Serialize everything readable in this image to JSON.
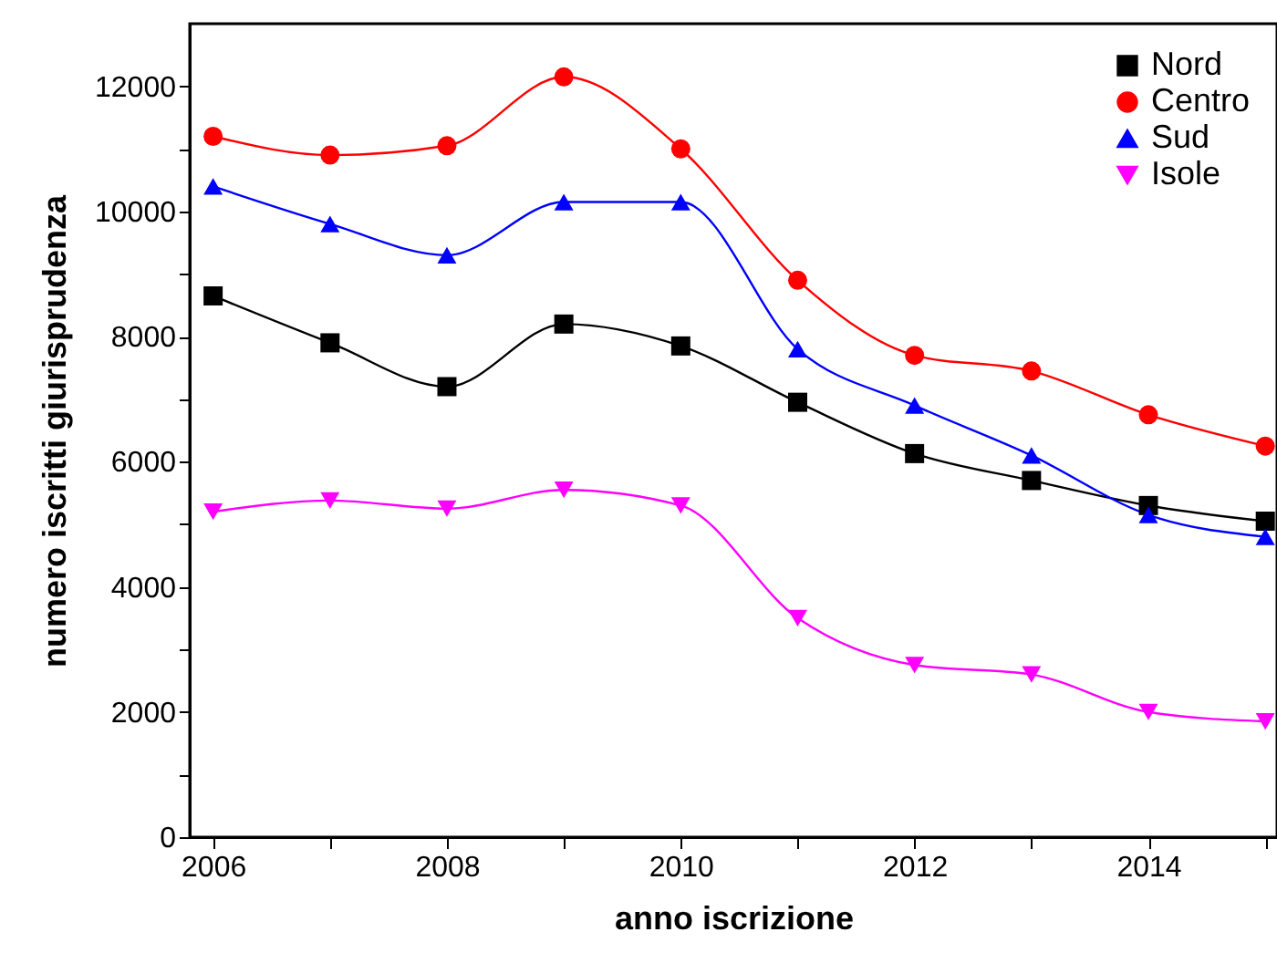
{
  "chart_data": {
    "type": "line",
    "xlabel": "anno iscrizione",
    "ylabel": "numero iscritti giurisprudenza",
    "x": [
      2006,
      2007,
      2008,
      2009,
      2010,
      2011,
      2012,
      2013,
      2014,
      2015
    ],
    "series": [
      {
        "name": "Nord",
        "color": "#000000",
        "marker": "square",
        "values": [
          8650,
          7900,
          7200,
          8200,
          7850,
          6950,
          6130,
          5700,
          5300,
          5050
        ]
      },
      {
        "name": "Centro",
        "color": "#ff0000",
        "marker": "circle",
        "values": [
          11200,
          10900,
          11050,
          12150,
          11000,
          8900,
          7700,
          7450,
          6750,
          6250
        ]
      },
      {
        "name": "Sud",
        "color": "#0000ff",
        "marker": "triangle",
        "values": [
          10400,
          9800,
          9300,
          10150,
          10150,
          7800,
          6900,
          6100,
          5150,
          4800
        ]
      },
      {
        "name": "Isole",
        "color": "#ff00ff",
        "marker": "triangle-down",
        "values": [
          5200,
          5380,
          5250,
          5550,
          5300,
          3500,
          2750,
          2600,
          2000,
          1850
        ]
      }
    ],
    "xlim": [
      2005.8,
      2015.1
    ],
    "xticks": [
      2006,
      {
        "value": 2007,
        "label": null
      },
      2008,
      {
        "value": 2009,
        "label": null
      },
      2010,
      {
        "value": 2011,
        "label": null
      },
      2012,
      {
        "value": 2013,
        "label": null
      },
      2014,
      {
        "value": 2015,
        "label": null
      }
    ],
    "ylim": [
      0,
      13000
    ],
    "yticks": [
      0,
      {
        "value": 1000,
        "label": null
      },
      2000,
      {
        "value": 3000,
        "label": null
      },
      4000,
      {
        "value": 5000,
        "label": null
      },
      6000,
      {
        "value": 7000,
        "label": null
      },
      8000,
      {
        "value": 9000,
        "label": null
      },
      10000,
      {
        "value": 11000,
        "label": null
      },
      12000
    ],
    "grid": false,
    "legend": "top right",
    "line_style": "solid"
  }
}
